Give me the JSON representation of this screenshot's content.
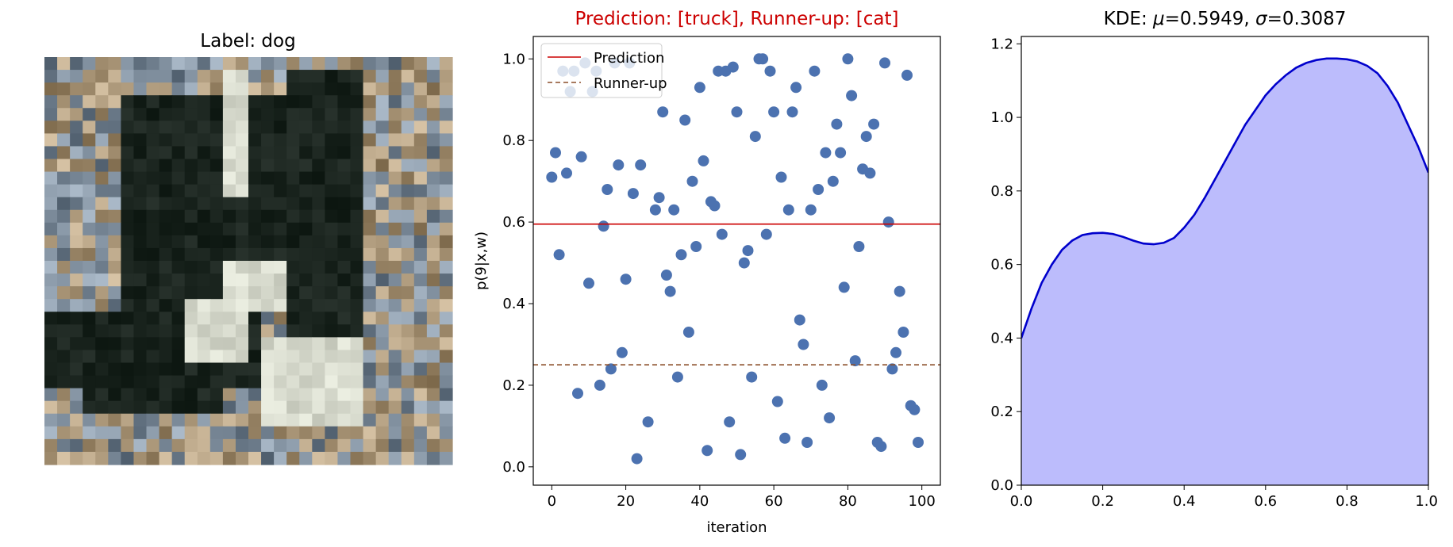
{
  "image_panel": {
    "title": "Label: dog"
  },
  "chart_data": [
    {
      "type": "image",
      "title": "Label: dog"
    },
    {
      "type": "scatter",
      "title": "Prediction: [truck], Runner-up: [cat]",
      "title_color": "#cc0000",
      "xlabel": "iteration",
      "ylabel": "p(9|x,w)",
      "xlim": [
        -5,
        105
      ],
      "ylim": [
        -0.045,
        1.055
      ],
      "xticks": [
        0,
        20,
        40,
        60,
        80,
        100
      ],
      "yticks": [
        0.0,
        0.2,
        0.4,
        0.6,
        0.8,
        1.0
      ],
      "xtick_labels": [
        "0",
        "20",
        "40",
        "60",
        "80",
        "100"
      ],
      "ytick_labels": [
        "0.0",
        "0.2",
        "0.4",
        "0.6",
        "0.8",
        "1.0"
      ],
      "point_color": "#4c72b0",
      "legend_location": "top-left",
      "lines": [
        {
          "name": "Prediction",
          "y": 0.5949,
          "color": "#cc0000",
          "style": "solid"
        },
        {
          "name": "Runner-up",
          "y": 0.25,
          "color": "#8b4f2a",
          "style": "dashed"
        }
      ],
      "points": [
        [
          0,
          0.71
        ],
        [
          1,
          0.77
        ],
        [
          2,
          0.52
        ],
        [
          3,
          0.97
        ],
        [
          4,
          0.72
        ],
        [
          5,
          0.92
        ],
        [
          6,
          0.97
        ],
        [
          7,
          0.18
        ],
        [
          8,
          0.76
        ],
        [
          9,
          0.99
        ],
        [
          10,
          0.45
        ],
        [
          11,
          0.92
        ],
        [
          12,
          0.97
        ],
        [
          14,
          0.59
        ],
        [
          15,
          0.68
        ],
        [
          16,
          0.24
        ],
        [
          17,
          0.99
        ],
        [
          18,
          0.74
        ],
        [
          19,
          0.28
        ],
        [
          20,
          0.46
        ],
        [
          21,
          0.99
        ],
        [
          22,
          0.67
        ],
        [
          23,
          0.02
        ],
        [
          24,
          0.74
        ],
        [
          26,
          0.11
        ],
        [
          28,
          0.63
        ],
        [
          29,
          0.66
        ],
        [
          30,
          0.87
        ],
        [
          31,
          0.47
        ],
        [
          32,
          0.43
        ],
        [
          33,
          0.63
        ],
        [
          34,
          0.22
        ],
        [
          35,
          0.52
        ],
        [
          36,
          0.85
        ],
        [
          37,
          0.33
        ],
        [
          38,
          0.7
        ],
        [
          39,
          0.54
        ],
        [
          40,
          0.93
        ],
        [
          41,
          0.75
        ],
        [
          42,
          0.04
        ],
        [
          43,
          0.65
        ],
        [
          44,
          0.64
        ],
        [
          45,
          0.97
        ],
        [
          46,
          0.57
        ],
        [
          47,
          0.97
        ],
        [
          48,
          0.11
        ],
        [
          49,
          0.98
        ],
        [
          50,
          0.87
        ],
        [
          51,
          0.03
        ],
        [
          52,
          0.5
        ],
        [
          53,
          0.53
        ],
        [
          54,
          0.22
        ],
        [
          55,
          0.81
        ],
        [
          56,
          1.0
        ],
        [
          57,
          1.0
        ],
        [
          58,
          0.57
        ],
        [
          59,
          0.97
        ],
        [
          60,
          0.87
        ],
        [
          61,
          0.16
        ],
        [
          62,
          0.71
        ],
        [
          63,
          0.07
        ],
        [
          64,
          0.63
        ],
        [
          65,
          0.87
        ],
        [
          66,
          0.93
        ],
        [
          67,
          0.36
        ],
        [
          68,
          0.3
        ],
        [
          69,
          0.06
        ],
        [
          70,
          0.63
        ],
        [
          71,
          0.97
        ],
        [
          72,
          0.68
        ],
        [
          73,
          0.2
        ],
        [
          74,
          0.77
        ],
        [
          75,
          0.12
        ],
        [
          76,
          0.7
        ],
        [
          77,
          0.84
        ],
        [
          78,
          0.77
        ],
        [
          79,
          0.44
        ],
        [
          80,
          1.0
        ],
        [
          81,
          0.91
        ],
        [
          82,
          0.26
        ],
        [
          83,
          0.54
        ],
        [
          84,
          0.73
        ],
        [
          85,
          0.81
        ],
        [
          86,
          0.72
        ],
        [
          87,
          0.84
        ],
        [
          88,
          0.06
        ],
        [
          89,
          0.05
        ],
        [
          90,
          0.99
        ],
        [
          91,
          0.6
        ],
        [
          92,
          0.24
        ],
        [
          93,
          0.28
        ],
        [
          94,
          0.43
        ],
        [
          95,
          0.33
        ],
        [
          96,
          0.96
        ],
        [
          97,
          0.15
        ],
        [
          98,
          0.14
        ],
        [
          99,
          0.06
        ],
        [
          13,
          0.2
        ]
      ]
    },
    {
      "type": "area",
      "title_prefix": "KDE: ",
      "mu_symbol": "μ",
      "mu_value": "=0.5949, ",
      "sigma_symbol": "σ",
      "sigma_value": "=0.3087",
      "xlim": [
        0,
        1
      ],
      "ylim": [
        0,
        1.22
      ],
      "xticks": [
        0.0,
        0.2,
        0.4,
        0.6,
        0.8,
        1.0
      ],
      "yticks": [
        0.0,
        0.2,
        0.4,
        0.6,
        0.8,
        1.0,
        1.2
      ],
      "xtick_labels": [
        "0.0",
        "0.2",
        "0.4",
        "0.6",
        "0.8",
        "1.0"
      ],
      "ytick_labels": [
        "0.0",
        "0.2",
        "0.4",
        "0.6",
        "0.8",
        "1.0",
        "1.2"
      ],
      "line_color": "#0000cc",
      "fill_color": "#bcbcfc",
      "x": [
        0.0,
        0.025,
        0.05,
        0.075,
        0.1,
        0.125,
        0.15,
        0.175,
        0.2,
        0.225,
        0.25,
        0.275,
        0.3,
        0.325,
        0.35,
        0.375,
        0.4,
        0.425,
        0.45,
        0.475,
        0.5,
        0.525,
        0.55,
        0.575,
        0.6,
        0.625,
        0.65,
        0.675,
        0.7,
        0.725,
        0.75,
        0.775,
        0.8,
        0.825,
        0.85,
        0.875,
        0.9,
        0.925,
        0.95,
        0.975,
        1.0
      ],
      "y": [
        0.4,
        0.48,
        0.55,
        0.6,
        0.64,
        0.665,
        0.68,
        0.685,
        0.686,
        0.683,
        0.675,
        0.665,
        0.657,
        0.655,
        0.659,
        0.672,
        0.7,
        0.735,
        0.78,
        0.83,
        0.88,
        0.93,
        0.98,
        1.02,
        1.06,
        1.09,
        1.115,
        1.135,
        1.148,
        1.156,
        1.16,
        1.16,
        1.158,
        1.152,
        1.14,
        1.12,
        1.085,
        1.04,
        0.98,
        0.92,
        0.85
      ]
    }
  ]
}
